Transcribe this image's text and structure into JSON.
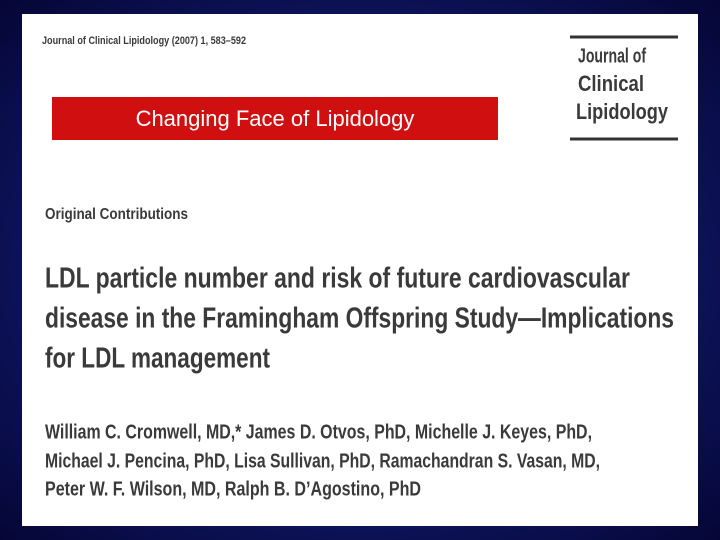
{
  "header": {
    "citation": "Journal of Clinical Lipidology (2007) 1, 583–592",
    "banner": "Changing Face of Lipidology",
    "logo": [
      "Journal of",
      "Clinical",
      "Lipidology"
    ]
  },
  "article": {
    "section": "Original Contributions",
    "title_lines": [
      "LDL particle number and risk of future cardiovascular",
      "disease in the Framingham Offspring Study—Implications",
      "for LDL management"
    ],
    "author_lines": [
      "William C. Cromwell, MD,* James D. Otvos, PhD, Michelle J. Keyes, PhD,",
      "Michael J. Pencina, PhD, Lisa Sullivan, PhD, Ramachandran S. Vasan, MD,",
      "Peter W. F. Wilson, MD, Ralph B. D’Agostino, PhD"
    ]
  }
}
